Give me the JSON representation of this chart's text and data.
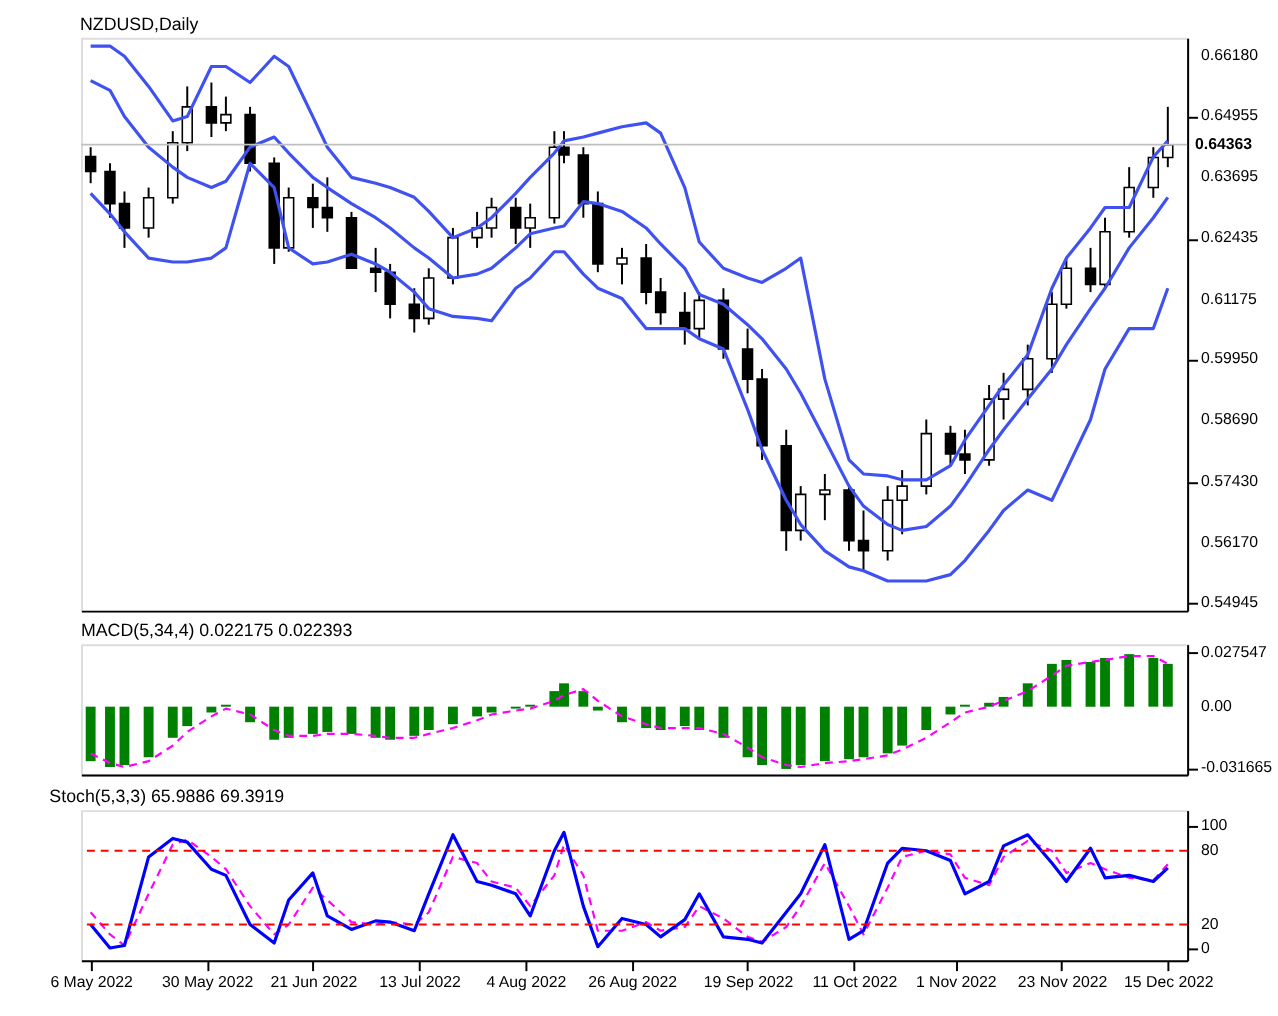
{
  "chart_data": [
    {
      "type": "candlestick",
      "title": "NZDUSD,Daily",
      "x": [
        "2022-05-06",
        "2022-05-10",
        "2022-05-13",
        "2022-05-18",
        "2022-05-23",
        "2022-05-26",
        "2022-05-31",
        "2022-06-03",
        "2022-06-08",
        "2022-06-13",
        "2022-06-16",
        "2022-06-21",
        "2022-06-24",
        "2022-06-29",
        "2022-07-04",
        "2022-07-07",
        "2022-07-12",
        "2022-07-15",
        "2022-07-20",
        "2022-07-25",
        "2022-07-28",
        "2022-08-02",
        "2022-08-05",
        "2022-08-10",
        "2022-08-12",
        "2022-08-16",
        "2022-08-19",
        "2022-08-24",
        "2022-08-29",
        "2022-09-01",
        "2022-09-06",
        "2022-09-09",
        "2022-09-14",
        "2022-09-19",
        "2022-09-22",
        "2022-09-27",
        "2022-09-30",
        "2022-10-05",
        "2022-10-10",
        "2022-10-13",
        "2022-10-18",
        "2022-10-21",
        "2022-10-26",
        "2022-10-31",
        "2022-11-03",
        "2022-11-08",
        "2022-11-11",
        "2022-11-16",
        "2022-11-21",
        "2022-11-24",
        "2022-11-29",
        "2022-12-02",
        "2022-12-07",
        "2022-12-12",
        "2022-12-15"
      ],
      "ohlc": [
        [
          0.6412,
          0.6431,
          0.6357,
          0.6381
        ],
        [
          0.6381,
          0.6398,
          0.6286,
          0.6315
        ],
        [
          0.6315,
          0.634,
          0.6224,
          0.6265
        ],
        [
          0.6265,
          0.6348,
          0.6245,
          0.6327
        ],
        [
          0.6327,
          0.6464,
          0.6315,
          0.644
        ],
        [
          0.644,
          0.6556,
          0.6423,
          0.6514
        ],
        [
          0.6514,
          0.6564,
          0.6452,
          0.6481
        ],
        [
          0.6481,
          0.6535,
          0.6464,
          0.6498
        ],
        [
          0.6498,
          0.6514,
          0.6381,
          0.6398
        ],
        [
          0.6398,
          0.641,
          0.6191,
          0.6224
        ],
        [
          0.6224,
          0.6348,
          0.6216,
          0.6327
        ],
        [
          0.6327,
          0.6356,
          0.6265,
          0.6307
        ],
        [
          0.6307,
          0.6369,
          0.6257,
          0.6286
        ],
        [
          0.6286,
          0.6298,
          0.6182,
          0.6182
        ],
        [
          0.6182,
          0.6224,
          0.6133,
          0.6174
        ],
        [
          0.6174,
          0.6191,
          0.6079,
          0.6108
        ],
        [
          0.6108,
          0.6141,
          0.605,
          0.6079
        ],
        [
          0.6079,
          0.6182,
          0.6066,
          0.6162
        ],
        [
          0.6162,
          0.6265,
          0.6149,
          0.6245
        ],
        [
          0.6245,
          0.6298,
          0.6224,
          0.6265
        ],
        [
          0.6265,
          0.6327,
          0.6245,
          0.6307
        ],
        [
          0.6307,
          0.6327,
          0.6232,
          0.6265
        ],
        [
          0.6265,
          0.6315,
          0.6224,
          0.6286
        ],
        [
          0.6286,
          0.6464,
          0.6274,
          0.6431
        ],
        [
          0.6431,
          0.6464,
          0.6398,
          0.6415
        ],
        [
          0.6415,
          0.6431,
          0.6286,
          0.6315
        ],
        [
          0.6315,
          0.634,
          0.6174,
          0.6191
        ],
        [
          0.6191,
          0.6224,
          0.6149,
          0.6203
        ],
        [
          0.6203,
          0.6232,
          0.6108,
          0.6133
        ],
        [
          0.6133,
          0.6162,
          0.6066,
          0.6091
        ],
        [
          0.6091,
          0.6133,
          0.6025,
          0.6058
        ],
        [
          0.6058,
          0.6133,
          0.6037,
          0.6116
        ],
        [
          0.6116,
          0.6141,
          0.5996,
          0.6016
        ],
        [
          0.6016,
          0.6058,
          0.5925,
          0.5954
        ],
        [
          0.5954,
          0.5975,
          0.5788,
          0.5817
        ],
        [
          0.5817,
          0.585,
          0.5601,
          0.5643
        ],
        [
          0.5643,
          0.5734,
          0.5622,
          0.5717
        ],
        [
          0.5717,
          0.5759,
          0.5664,
          0.5726
        ],
        [
          0.5726,
          0.5734,
          0.5601,
          0.5622
        ],
        [
          0.5622,
          0.5684,
          0.556,
          0.5601
        ],
        [
          0.5601,
          0.5734,
          0.5581,
          0.5705
        ],
        [
          0.5705,
          0.5767,
          0.5635,
          0.5734
        ],
        [
          0.5734,
          0.5871,
          0.5717,
          0.5842
        ],
        [
          0.5842,
          0.5858,
          0.5776,
          0.58
        ],
        [
          0.58,
          0.585,
          0.5759,
          0.5788
        ],
        [
          0.5788,
          0.5942,
          0.5776,
          0.5913
        ],
        [
          0.5913,
          0.5967,
          0.5871,
          0.5933
        ],
        [
          0.5933,
          0.6025,
          0.59,
          0.5996
        ],
        [
          0.5996,
          0.6133,
          0.5967,
          0.6108
        ],
        [
          0.6108,
          0.6203,
          0.6099,
          0.6182
        ],
        [
          0.6182,
          0.6224,
          0.6133,
          0.6149
        ],
        [
          0.6149,
          0.6286,
          0.6141,
          0.6257
        ],
        [
          0.6257,
          0.639,
          0.6245,
          0.6348
        ],
        [
          0.6348,
          0.6431,
          0.6327,
          0.641
        ],
        [
          0.641,
          0.6514,
          0.639,
          0.6436
        ]
      ],
      "colors": [
        "#000000",
        "#000000",
        "#000000",
        "#ffffff",
        "#ffffff",
        "#ffffff",
        "#000000",
        "#ffffff",
        "#000000",
        "#000000",
        "#ffffff",
        "#000000",
        "#000000",
        "#000000",
        "#000000",
        "#000000",
        "#000000",
        "#ffffff",
        "#ffffff",
        "#ffffff",
        "#ffffff",
        "#000000",
        "#ffffff",
        "#ffffff",
        "#000000",
        "#000000",
        "#000000",
        "#ffffff",
        "#000000",
        "#000000",
        "#000000",
        "#ffffff",
        "#000000",
        "#000000",
        "#000000",
        "#000000",
        "#ffffff",
        "#ffffff",
        "#000000",
        "#000000",
        "#ffffff",
        "#ffffff",
        "#ffffff",
        "#000000",
        "#000000",
        "#ffffff",
        "#ffffff",
        "#ffffff",
        "#ffffff",
        "#ffffff",
        "#000000",
        "#ffffff",
        "#ffffff",
        "#ffffff",
        "#ffffff"
      ],
      "series": [
        {
          "type": "line",
          "color": "#3f51f0",
          "values": [
            0.6639,
            0.6639,
            0.6618,
            0.6556,
            0.6485,
            0.6494,
            0.6597,
            0.6597,
            0.6564,
            0.6618,
            0.6597,
            0.6494,
            0.6431,
            0.6369,
            0.6357,
            0.6348,
            0.6328,
            0.6299,
            0.6245,
            0.6265,
            0.6286,
            0.6336,
            0.6369,
            0.6419,
            0.6444,
            0.6452,
            0.646,
            0.6473,
            0.6481,
            0.646,
            0.6348,
            0.6236,
            0.6182,
            0.6162,
            0.6153,
            0.6182,
            0.6203,
            0.5954,
            0.5788,
            0.5759,
            0.5755,
            0.5747,
            0.5747,
            0.5776,
            0.5829,
            0.59,
            0.5942,
            0.6004,
            0.6141,
            0.6203,
            0.6265,
            0.6307,
            0.6307,
            0.6411,
            0.6444
          ]
        },
        {
          "type": "line",
          "color": "#3f51f0",
          "values": [
            0.6568,
            0.6548,
            0.6494,
            0.6431,
            0.639,
            0.6369,
            0.6348,
            0.6361,
            0.6431,
            0.6452,
            0.6419,
            0.6369,
            0.6348,
            0.6315,
            0.6286,
            0.6265,
            0.6224,
            0.6203,
            0.6162,
            0.617,
            0.6182,
            0.6224,
            0.6253,
            0.6265,
            0.6269,
            0.6319,
            0.6315,
            0.6299,
            0.6265,
            0.6232,
            0.6182,
            0.6128,
            0.6108,
            0.6066,
            0.6037,
            0.5975,
            0.5925,
            0.583,
            0.5734,
            0.5693,
            0.5655,
            0.5643,
            0.5651,
            0.5693,
            0.5734,
            0.5809,
            0.585,
            0.5913,
            0.5975,
            0.6025,
            0.6099,
            0.6141,
            0.6224,
            0.6286,
            0.6328
          ]
        },
        {
          "type": "line",
          "color": "#3f51f0",
          "values": [
            0.6336,
            0.6294,
            0.6257,
            0.6203,
            0.6195,
            0.6195,
            0.6203,
            0.6224,
            0.6398,
            0.6348,
            0.6224,
            0.6191,
            0.6195,
            0.6211,
            0.6191,
            0.6174,
            0.6133,
            0.6099,
            0.6083,
            0.6079,
            0.6074,
            0.6141,
            0.6162,
            0.6216,
            0.6216,
            0.617,
            0.6141,
            0.612,
            0.6058,
            0.6058,
            0.6058,
            0.6037,
            0.6016,
            0.5892,
            0.5809,
            0.5705,
            0.5655,
            0.5601,
            0.5568,
            0.556,
            0.5539,
            0.5539,
            0.5539,
            0.5552,
            0.5581,
            0.5643,
            0.5684,
            0.5726,
            0.5705,
            0.5767,
            0.5871,
            0.5975,
            0.6058,
            0.6058,
            0.6141
          ]
        }
      ],
      "ref_lines": [
        {
          "axis": "y",
          "value": 0.64363,
          "label": "0.64363",
          "color": "#c0c0c0"
        }
      ],
      "xlim": [
        "2022-05-04",
        "2022-12-19"
      ],
      "ylim": [
        0.5478,
        0.6656
      ],
      "yticks": [
        {
          "value": 0.6618,
          "label": "0.66180"
        },
        {
          "value": 0.64955,
          "label": "0.64955"
        },
        {
          "value": 0.63695,
          "label": "0.63695"
        },
        {
          "value": 0.62435,
          "label": "0.62435"
        },
        {
          "value": 0.61175,
          "label": "0.61175"
        },
        {
          "value": 0.5995,
          "label": "0.59950"
        },
        {
          "value": 0.5869,
          "label": "0.58690"
        },
        {
          "value": 0.5743,
          "label": "0.57430"
        },
        {
          "value": 0.5617,
          "label": "0.56170"
        },
        {
          "value": 0.54945,
          "label": "0.54945"
        }
      ],
      "tick_labels": "y",
      "grid": false
    },
    {
      "type": "bar",
      "title": "MACD(5,34,4) 0.022175 0.022393",
      "x": [
        "2022-05-06",
        "2022-05-10",
        "2022-05-13",
        "2022-05-18",
        "2022-05-23",
        "2022-05-26",
        "2022-05-31",
        "2022-06-03",
        "2022-06-08",
        "2022-06-13",
        "2022-06-16",
        "2022-06-21",
        "2022-06-24",
        "2022-06-29",
        "2022-07-04",
        "2022-07-07",
        "2022-07-12",
        "2022-07-15",
        "2022-07-20",
        "2022-07-25",
        "2022-07-28",
        "2022-08-02",
        "2022-08-05",
        "2022-08-10",
        "2022-08-12",
        "2022-08-16",
        "2022-08-19",
        "2022-08-24",
        "2022-08-29",
        "2022-09-01",
        "2022-09-06",
        "2022-09-09",
        "2022-09-14",
        "2022-09-19",
        "2022-09-22",
        "2022-09-27",
        "2022-09-30",
        "2022-10-05",
        "2022-10-10",
        "2022-10-13",
        "2022-10-18",
        "2022-10-21",
        "2022-10-26",
        "2022-10-31",
        "2022-11-03",
        "2022-11-08",
        "2022-11-11",
        "2022-11-16",
        "2022-11-21",
        "2022-11-24",
        "2022-11-29",
        "2022-12-02",
        "2022-12-07",
        "2022-12-12",
        "2022-12-15"
      ],
      "series": [
        {
          "type": "bar",
          "color": "#008000",
          "values": [
            -0.028,
            -0.031,
            -0.03,
            -0.026,
            -0.016,
            -0.01,
            -0.003,
            0.001,
            -0.008,
            -0.017,
            -0.016,
            -0.014,
            -0.013,
            -0.014,
            -0.016,
            -0.017,
            -0.015,
            -0.012,
            -0.009,
            -0.005,
            -0.003,
            -0.001,
            0.001,
            0.008,
            0.012,
            0.008,
            -0.002,
            -0.008,
            -0.011,
            -0.012,
            -0.01,
            -0.012,
            -0.016,
            -0.026,
            -0.03,
            -0.032,
            -0.03,
            -0.028,
            -0.027,
            -0.026,
            -0.024,
            -0.02,
            -0.012,
            -0.004,
            0.001,
            0.002,
            0.005,
            0.012,
            0.022,
            0.024,
            0.023,
            0.025,
            0.027,
            0.025,
            0.022
          ]
        },
        {
          "type": "line",
          "color": "#ff00ff",
          "line_style": "dashed",
          "values": [
            -0.024,
            -0.029,
            -0.031,
            -0.028,
            -0.02,
            -0.013,
            -0.005,
            -0.001,
            -0.004,
            -0.012,
            -0.015,
            -0.015,
            -0.014,
            -0.014,
            -0.015,
            -0.016,
            -0.016,
            -0.014,
            -0.011,
            -0.007,
            -0.004,
            -0.002,
            -0.001,
            0.003,
            0.006,
            0.009,
            0.003,
            -0.005,
            -0.009,
            -0.011,
            -0.011,
            -0.011,
            -0.014,
            -0.021,
            -0.026,
            -0.03,
            -0.031,
            -0.029,
            -0.028,
            -0.027,
            -0.025,
            -0.022,
            -0.016,
            -0.008,
            -0.003,
            0.0,
            0.003,
            0.008,
            0.016,
            0.021,
            0.023,
            0.024,
            0.026,
            0.026,
            0.022
          ]
        }
      ],
      "xlim": [
        "2022-05-04",
        "2022-12-19"
      ],
      "ylim": [
        -0.0349,
        0.0321
      ],
      "yticks": [
        0.027547,
        {
          "value": 0,
          "label": "0.00"
        },
        -0.031665
      ],
      "tick_labels": "y",
      "grid": false
    },
    {
      "type": "line",
      "title": "Stoch(5,3,3) 65.9886 69.3919",
      "x": [
        "2022-05-06",
        "2022-05-10",
        "2022-05-13",
        "2022-05-18",
        "2022-05-23",
        "2022-05-26",
        "2022-05-31",
        "2022-06-03",
        "2022-06-08",
        "2022-06-13",
        "2022-06-16",
        "2022-06-21",
        "2022-06-24",
        "2022-06-29",
        "2022-07-04",
        "2022-07-07",
        "2022-07-12",
        "2022-07-15",
        "2022-07-20",
        "2022-07-25",
        "2022-07-28",
        "2022-08-02",
        "2022-08-05",
        "2022-08-10",
        "2022-08-12",
        "2022-08-16",
        "2022-08-19",
        "2022-08-24",
        "2022-08-29",
        "2022-09-01",
        "2022-09-06",
        "2022-09-09",
        "2022-09-14",
        "2022-09-19",
        "2022-09-22",
        "2022-09-27",
        "2022-09-30",
        "2022-10-05",
        "2022-10-10",
        "2022-10-13",
        "2022-10-18",
        "2022-10-21",
        "2022-10-26",
        "2022-10-31",
        "2022-11-03",
        "2022-11-08",
        "2022-11-11",
        "2022-11-16",
        "2022-11-21",
        "2022-11-24",
        "2022-11-29",
        "2022-12-02",
        "2022-12-07",
        "2022-12-12",
        "2022-12-15"
      ],
      "series": [
        {
          "type": "line",
          "color": "#ff00ff",
          "line_style": "dashed",
          "values": [
            30,
            12,
            3,
            45,
            85,
            89,
            75,
            65,
            35,
            12,
            20,
            50,
            40,
            22,
            20,
            22,
            20,
            30,
            75,
            70,
            55,
            50,
            35,
            60,
            85,
            60,
            15,
            15,
            22,
            15,
            18,
            35,
            25,
            10,
            6,
            18,
            35,
            70,
            35,
            12,
            50,
            75,
            80,
            77,
            58,
            52,
            75,
            88,
            80,
            62,
            70,
            65,
            58,
            56,
            69
          ]
        },
        {
          "type": "line",
          "color": "#0000ff",
          "line_style": "solid",
          "values": [
            20,
            1,
            3,
            75,
            90,
            87,
            65,
            60,
            20,
            5,
            40,
            62,
            27,
            16,
            23,
            22,
            15,
            45,
            93,
            55,
            52,
            45,
            27,
            80,
            95,
            35,
            2,
            25,
            20,
            10,
            24,
            45,
            10,
            8,
            5,
            30,
            45,
            85,
            8,
            15,
            70,
            82,
            80,
            72,
            45,
            55,
            84,
            93,
            70,
            55,
            82,
            58,
            60,
            55,
            66
          ]
        }
      ],
      "ref_lines": [
        {
          "axis": "y",
          "value": 80,
          "color": "#ff0000",
          "line_style": "dashed"
        },
        {
          "axis": "y",
          "value": 20,
          "color": "#ff0000",
          "line_style": "dashed"
        }
      ],
      "xlim": [
        "2022-05-04",
        "2022-12-19"
      ],
      "xticks": [
        {
          "value": "2022-05-06",
          "label": "6 May 2022"
        },
        {
          "value": "2022-05-30",
          "label": "30 May 2022"
        },
        {
          "value": "2022-06-21",
          "label": "21 Jun 2022"
        },
        {
          "value": "2022-07-13",
          "label": "13 Jul 2022"
        },
        {
          "value": "2022-08-04",
          "label": "4 Aug 2022"
        },
        {
          "value": "2022-08-26",
          "label": "26 Aug 2022"
        },
        {
          "value": "2022-09-19",
          "label": "19 Sep 2022"
        },
        {
          "value": "2022-10-11",
          "label": "11 Oct 2022"
        },
        {
          "value": "2022-11-01",
          "label": "1 Nov 2022"
        },
        {
          "value": "2022-11-23",
          "label": "23 Nov 2022"
        },
        {
          "value": "2022-12-15",
          "label": "15 Dec 2022"
        }
      ],
      "ylim": [
        -9,
        113
      ],
      "yticks": [
        100,
        80,
        20,
        0
      ],
      "grid": false
    }
  ]
}
